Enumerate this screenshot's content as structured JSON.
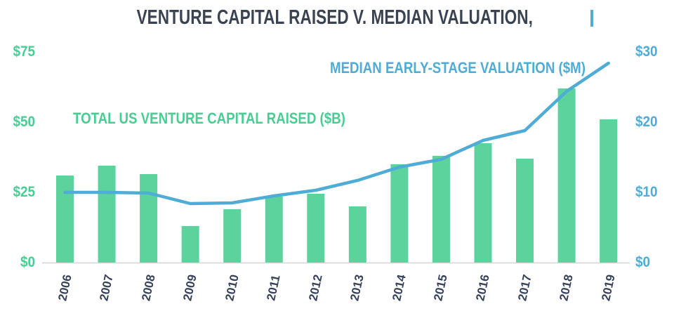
{
  "title": {
    "text": "VENTURE CAPITAL RAISED V. MEDIAN VALUATION,"
  },
  "annotations": {
    "bars_label": "TOTAL US VENTURE CAPITAL RAISED ($B)",
    "line_label": "MEDIAN EARLY-STAGE VALUATION ($M)"
  },
  "colors": {
    "background": "#FFFFFF",
    "bar_green": "#5CD29C",
    "green_text": "#48CD92",
    "line_blue": "#4FACD6",
    "title_text": "#3A4352",
    "year_text": "#36415A",
    "axis_line": "#DCDCDC"
  },
  "chart_data": {
    "type": "combo-bar-line",
    "title": "Venture Capital Raised v. Median Valuation",
    "categories": [
      "2006",
      "2007",
      "2008",
      "2009",
      "2010",
      "2011",
      "2012",
      "2013",
      "2014",
      "2015",
      "2016",
      "2017",
      "2018",
      "2019"
    ],
    "series": [
      {
        "name": "Total US Venture Capital Raised ($B)",
        "type": "bar",
        "axis": "left",
        "color": "#5CD29C",
        "values": [
          31,
          34.5,
          31.5,
          13,
          19,
          23.5,
          24.5,
          20,
          35,
          38,
          42.5,
          37,
          62,
          51
        ]
      },
      {
        "name": "Median Early-Stage Valuation ($M)",
        "type": "line",
        "axis": "right",
        "color": "#4FACD6",
        "values": [
          10,
          10,
          9.9,
          8.4,
          8.5,
          9.5,
          10.3,
          11.7,
          13.6,
          14.7,
          17.4,
          18.8,
          24.4,
          28.4
        ]
      }
    ],
    "left_axis": {
      "unit": "$B",
      "tick_labels": [
        "$0",
        "$25",
        "$50",
        "$75"
      ],
      "tick_values": [
        0,
        25,
        50,
        75
      ],
      "range": [
        0,
        75
      ],
      "color": "#48CD92"
    },
    "right_axis": {
      "unit": "$M",
      "tick_labels": [
        "$0",
        "$10",
        "$20",
        "$30"
      ],
      "tick_values": [
        0,
        10,
        20,
        30
      ],
      "range": [
        0,
        30
      ],
      "color": "#4FACD6"
    },
    "grid": false,
    "legend_position": "inline-annotations"
  }
}
